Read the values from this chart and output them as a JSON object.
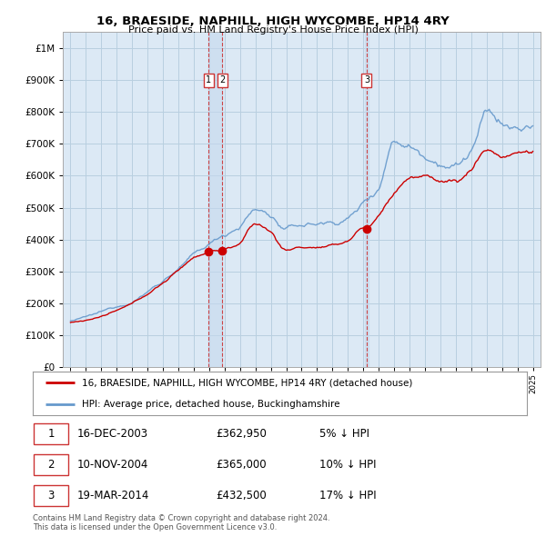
{
  "title": "16, BRAESIDE, NAPHILL, HIGH WYCOMBE, HP14 4RY",
  "subtitle": "Price paid vs. HM Land Registry's House Price Index (HPI)",
  "background_color": "#ffffff",
  "plot_bg_color": "#dce9f5",
  "grid_color": "#b8cfe0",
  "hpi_color": "#6699cc",
  "price_color": "#cc0000",
  "sale_marker_color": "#cc0000",
  "vline_color": "#cc3333",
  "vspan_color": "#c5d9ee",
  "sale_years": [
    2003.96,
    2004.86,
    2014.22
  ],
  "sale_prices": [
    362950,
    365000,
    432500
  ],
  "table_rows": [
    {
      "num": "1",
      "date": "16-DEC-2003",
      "price": "£362,950",
      "change": "5% ↓ HPI"
    },
    {
      "num": "2",
      "date": "10-NOV-2004",
      "price": "£365,000",
      "change": "10% ↓ HPI"
    },
    {
      "num": "3",
      "date": "19-MAR-2014",
      "price": "£432,500",
      "change": "17% ↓ HPI"
    }
  ],
  "footer": "Contains HM Land Registry data © Crown copyright and database right 2024.\nThis data is licensed under the Open Government Licence v3.0.",
  "legend_property": "16, BRAESIDE, NAPHILL, HIGH WYCOMBE, HP14 4RY (detached house)",
  "legend_hpi": "HPI: Average price, detached house, Buckinghamshire",
  "ylim": [
    0,
    1050000
  ],
  "xlim": [
    1994.5,
    2025.5
  ]
}
